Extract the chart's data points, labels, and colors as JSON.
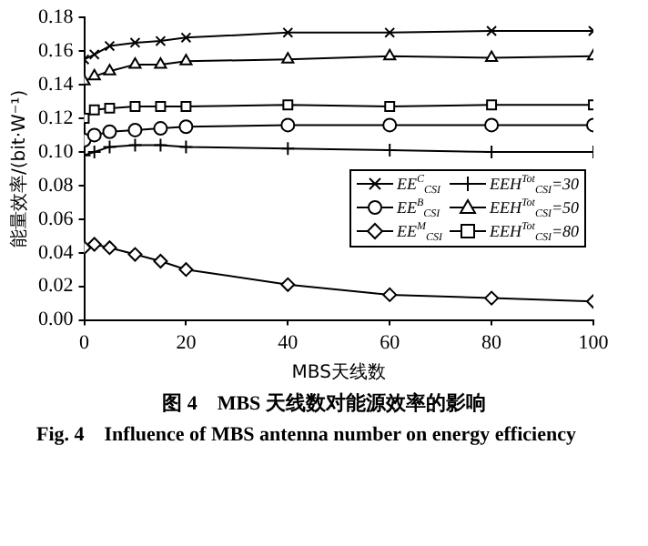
{
  "chart_data": {
    "type": "line",
    "title": "图 4　MBS 天线数对能源效率的影响",
    "subtitle": "Fig. 4　Influence of MBS antenna number on energy efficiency",
    "xlabel": "MBS天线数",
    "ylabel": "能量效率/(bit·W⁻¹)",
    "x": [
      0,
      2,
      5,
      10,
      15,
      20,
      40,
      60,
      80,
      100
    ],
    "xlim": [
      0,
      100
    ],
    "xticks": [
      0,
      20,
      40,
      60,
      80,
      100
    ],
    "ylim": [
      0,
      0.18
    ],
    "yticks": [
      {
        "value": 0,
        "label": "0.00"
      },
      0.02,
      0.04,
      0.06,
      0.08,
      {
        "value": 0.1,
        "label": "0.10"
      },
      0.12,
      0.14,
      0.16,
      0.18
    ],
    "grid": false,
    "legend": "bottom right",
    "line_style": "solid",
    "series": [
      {
        "name": "EE$^{C}$$_{CSI}$",
        "color": "#000000",
        "marker": "x",
        "values": [
          0.155,
          0.158,
          0.163,
          0.165,
          0.166,
          0.168,
          0.171,
          0.171,
          0.172,
          0.172
        ]
      },
      {
        "name": "EE$^{B}$$_{CSI}$",
        "color": "#000000",
        "marker": "circle",
        "values": [
          0.107,
          0.11,
          0.112,
          0.113,
          0.114,
          0.115,
          0.116,
          0.116,
          0.116,
          0.116
        ]
      },
      {
        "name": "EE$^{M}$$_{CSI}$",
        "color": "#000000",
        "marker": "diamond",
        "values": [
          0.043,
          0.045,
          0.043,
          0.039,
          0.035,
          0.03,
          0.021,
          0.015,
          0.013,
          0.011
        ]
      },
      {
        "name": "EEH$^{Tot}$$_{CSI}$=30",
        "color": "#000000",
        "marker": "cross",
        "values": [
          0.098,
          0.1,
          0.103,
          0.104,
          0.104,
          0.103,
          0.102,
          0.101,
          0.1,
          0.1
        ]
      },
      {
        "name": "EEH$^{Tot}$$_{CSI}$=50",
        "color": "#000000",
        "marker": "triangle",
        "values": [
          0.142,
          0.145,
          0.148,
          0.152,
          0.152,
          0.154,
          0.155,
          0.157,
          0.156,
          0.157
        ]
      },
      {
        "name": "EEH$^{Tot}$$_{CSI}$=80",
        "color": "#000000",
        "marker": "square",
        "values": [
          0.12,
          0.125,
          0.126,
          0.127,
          0.127,
          0.127,
          0.128,
          0.127,
          0.128,
          0.128
        ]
      }
    ]
  }
}
